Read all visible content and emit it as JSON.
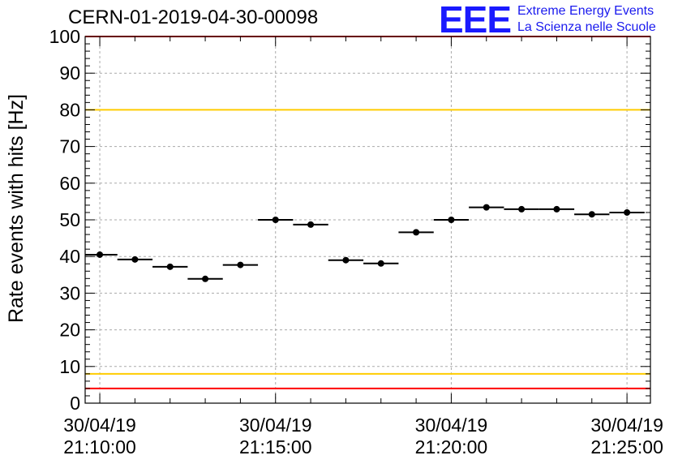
{
  "header": {
    "run_title": "CERN-01-2019-04-30-00098",
    "logo_letters": "EEE",
    "logo_line1": "Extreme Energy Events",
    "logo_line2": "La Scienza nelle Scuole"
  },
  "chart_data": {
    "type": "scatter",
    "title": "CERN-01-2019-04-30-00098",
    "xlabel": "",
    "ylabel": "Rate events with hits [Hz]",
    "xlim": [
      "21:09:35",
      "21:25:40"
    ],
    "ylim": [
      0,
      100
    ],
    "grid": true,
    "x_ticks": [
      {
        "date": "30/04/19",
        "time": "21:10:00"
      },
      {
        "date": "30/04/19",
        "time": "21:15:00"
      },
      {
        "date": "30/04/19",
        "time": "21:20:00"
      },
      {
        "date": "30/04/19",
        "time": "21:25:00"
      }
    ],
    "y_ticks": [
      "0",
      "10",
      "20",
      "30",
      "40",
      "50",
      "60",
      "70",
      "80",
      "90",
      "100"
    ],
    "series": [
      {
        "points": [
          {
            "x": "21:10:00",
            "y": 40.5
          },
          {
            "x": "21:11:00",
            "y": 39.2
          },
          {
            "x": "21:12:00",
            "y": 37.2
          },
          {
            "x": "21:13:00",
            "y": 33.9
          },
          {
            "x": "21:14:00",
            "y": 37.7
          },
          {
            "x": "21:15:00",
            "y": 50.0
          },
          {
            "x": "21:16:00",
            "y": 48.7
          },
          {
            "x": "21:17:00",
            "y": 39.0
          },
          {
            "x": "21:18:00",
            "y": 38.1
          },
          {
            "x": "21:19:00",
            "y": 46.6
          },
          {
            "x": "21:20:00",
            "y": 50.0
          },
          {
            "x": "21:21:00",
            "y": 53.4
          },
          {
            "x": "21:22:00",
            "y": 52.9
          },
          {
            "x": "21:23:00",
            "y": 52.9
          },
          {
            "x": "21:24:00",
            "y": 51.5
          },
          {
            "x": "21:25:00",
            "y": 52.0
          }
        ],
        "bin_width_seconds": 60,
        "color": "#000000"
      }
    ],
    "reference_lines": [
      {
        "y": 100,
        "color": "#ff0000"
      },
      {
        "y": 80,
        "color": "#ffcc00"
      },
      {
        "y": 8,
        "color": "#ffcc00"
      },
      {
        "y": 4,
        "color": "#ff0000"
      }
    ]
  }
}
